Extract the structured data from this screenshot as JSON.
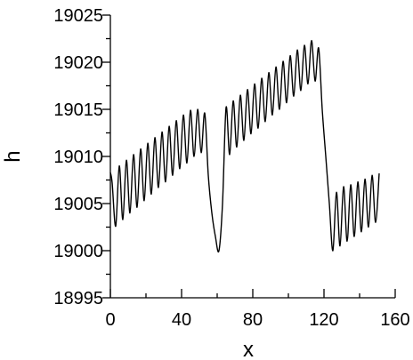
{
  "chart_data": {
    "type": "line",
    "title": "",
    "xlabel": "x",
    "ylabel": "h",
    "xlim": [
      0,
      160
    ],
    "ylim": [
      18995,
      19025
    ],
    "x_ticks": [
      "0",
      "40",
      "80",
      "120",
      "160"
    ],
    "y_ticks": [
      "18995",
      "19000",
      "19005",
      "19010",
      "19015",
      "19020",
      "19025"
    ],
    "grid": false,
    "legend": "none",
    "line_color": "#000000",
    "series": [
      {
        "x": [
          0,
          1,
          3,
          5,
          7,
          9,
          11,
          13,
          15,
          17,
          19,
          21,
          23,
          25,
          27,
          29,
          31,
          33,
          35,
          37,
          39,
          41,
          43,
          45,
          47,
          49,
          51,
          53,
          55,
          57,
          59,
          61,
          63,
          65,
          67,
          69,
          71,
          73,
          75,
          77,
          79,
          81,
          83,
          85,
          87,
          89,
          91,
          93,
          95,
          97,
          99,
          101,
          103,
          105,
          107,
          109,
          111,
          113,
          115,
          117,
          119,
          121,
          123,
          125,
          127,
          129,
          131,
          133,
          135,
          137,
          139,
          141,
          143,
          145,
          147,
          149,
          151
        ],
        "y": [
          19008.3,
          19007.2,
          19002.6,
          19009.0,
          19003.3,
          19009.6,
          19004.0,
          19010.2,
          19004.6,
          19010.8,
          19005.3,
          19011.4,
          19006.0,
          19012.0,
          19006.7,
          19012.6,
          19007.3,
          19013.2,
          19008.0,
          19013.8,
          19008.7,
          19014.4,
          19009.3,
          19014.9,
          19010.0,
          19015.0,
          19010.4,
          19014.6,
          19008.0,
          19004.0,
          19001.5,
          19000.0,
          19005.0,
          19015.2,
          19010.2,
          19015.9,
          19011.0,
          19016.5,
          19011.7,
          19017.1,
          19012.4,
          19017.7,
          19013.0,
          19018.3,
          19013.7,
          19018.9,
          19014.4,
          19019.5,
          19015.0,
          19020.1,
          19015.7,
          19020.7,
          19016.4,
          19021.3,
          19017.0,
          19021.8,
          19017.7,
          19022.3,
          19018.0,
          19021.5,
          19015.0,
          19010.0,
          19005.0,
          19000.0,
          19006.2,
          19000.5,
          19006.8,
          19001.0,
          19007.0,
          19001.5,
          19007.3,
          19002.0,
          19007.6,
          19002.5,
          19008.0,
          19003.0,
          19008.2
        ]
      }
    ]
  }
}
